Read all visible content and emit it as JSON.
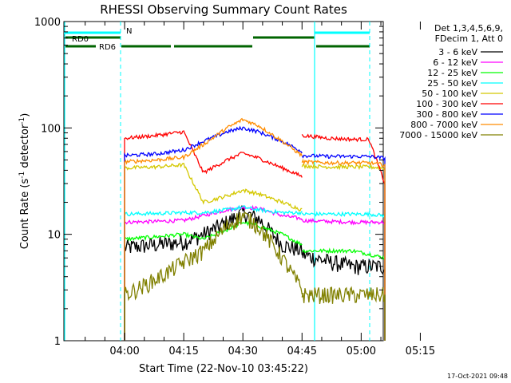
{
  "chart_data": {
    "type": "line",
    "title": "RHESSI Observing Summary Count Rates",
    "xlabel": "Start Time (22-Nov-10 03:45:22)",
    "ylabel": "Count Rate (s",
    "ylabel_sup": "-1",
    "ylabel_mid": " detector",
    "ylabel_sup2": "-1",
    "ylabel_end": ")",
    "yscale": "log",
    "ylim": [
      1,
      1000
    ],
    "xlim_minutes": [
      -15.4,
      65.6
    ],
    "y_ticks": [
      {
        "value": 1,
        "label": "1"
      },
      {
        "value": 10,
        "label": "10"
      },
      {
        "value": 100,
        "label": "100"
      },
      {
        "value": 1000,
        "label": "1000"
      }
    ],
    "x_ticks": [
      {
        "minutes": 0,
        "label": "04:00"
      },
      {
        "minutes": 15,
        "label": "04:15"
      },
      {
        "minutes": 30,
        "label": "04:30"
      },
      {
        "minutes": 45,
        "label": "04:45"
      },
      {
        "minutes": 60,
        "label": "05:00"
      },
      {
        "minutes": 75,
        "label": "05:15"
      }
    ],
    "legend": {
      "header": [
        "Det 1,3,4,5,6,9,",
        "FDecim 1, Att 0"
      ],
      "placement": "right"
    },
    "flags": {
      "N_label": "N",
      "RD0_label": "RD0",
      "RD6_label": "RD6"
    },
    "series": [
      {
        "name": "3 - 6 keV",
        "color": "#000000",
        "segments": [
          {
            "x": [
              0,
              8,
              15,
              20,
              26,
              30,
              34,
              40,
              45
            ],
            "y": [
              7.5,
              8,
              8.5,
              10,
              13,
              16,
              14,
              8,
              7
            ]
          },
          {
            "x": [
              45,
              52,
              58,
              62,
              66
            ],
            "y": [
              6.5,
              5.5,
              5,
              5,
              5
            ]
          }
        ]
      },
      {
        "name": "6 - 12 keV",
        "color": "#ff00ff",
        "segments": [
          {
            "x": [
              0,
              8,
              15,
              20,
              26,
              30,
              34,
              40,
              45
            ],
            "y": [
              13,
              13.2,
              13.5,
              15,
              17,
              18,
              17.5,
              15,
              14
            ]
          },
          {
            "x": [
              45,
              52,
              58,
              62,
              66
            ],
            "y": [
              13.5,
              13.2,
              13,
              13,
              13
            ]
          }
        ]
      },
      {
        "name": "12 - 25 keV",
        "color": "#00ff00",
        "segments": [
          {
            "x": [
              0,
              8,
              15,
              20,
              26,
              30,
              34,
              40,
              45
            ],
            "y": [
              9,
              9.5,
              10,
              9,
              11,
              13,
              12,
              10,
              8
            ]
          },
          {
            "x": [
              45,
              52,
              58,
              62,
              66
            ],
            "y": [
              7,
              7,
              7,
              6.5,
              6
            ]
          }
        ]
      },
      {
        "name": "25 - 50 keV",
        "color": "#00ffff",
        "segments": [
          {
            "x": [
              0,
              8,
              15,
              20,
              26,
              30,
              34,
              40,
              45
            ],
            "y": [
              15.5,
              15.7,
              16,
              16,
              17,
              18,
              17,
              16,
              16
            ]
          },
          {
            "x": [
              45,
              52,
              58,
              62,
              66
            ],
            "y": [
              15.5,
              15.5,
              15.5,
              15.5,
              15
            ]
          }
        ]
      },
      {
        "name": "50 - 100 keV",
        "color": "#d4c800",
        "segments": [
          {
            "x": [
              0,
              8,
              15,
              20,
              26,
              30,
              34,
              40,
              45
            ],
            "y": [
              42,
              43,
              45,
              20,
              23,
              26,
              24,
              20,
              17
            ]
          },
          {
            "x": [
              45,
              52,
              58,
              62,
              66
            ],
            "y": [
              44,
              43,
              43,
              43,
              42
            ]
          }
        ]
      },
      {
        "name": "100 - 300 keV",
        "color": "#ff0000",
        "segments": [
          {
            "x": [
              0,
              8,
              15,
              20,
              26,
              30,
              34,
              40,
              45
            ],
            "y": [
              80,
              85,
              92,
              38,
              50,
              58,
              52,
              42,
              35
            ]
          },
          {
            "x": [
              45,
              52,
              58,
              62,
              66
            ],
            "y": [
              85,
              80,
              78,
              78,
              30
            ]
          }
        ]
      },
      {
        "name": "300 - 800 keV",
        "color": "#0000ff",
        "segments": [
          {
            "x": [
              0,
              8,
              15,
              20,
              26,
              30,
              34,
              40,
              45
            ],
            "y": [
              55,
              57,
              62,
              75,
              92,
              100,
              92,
              75,
              60
            ]
          },
          {
            "x": [
              45,
              52,
              58,
              62,
              66
            ],
            "y": [
              55,
              54,
              54,
              54,
              52
            ]
          }
        ]
      },
      {
        "name": "800 - 7000 keV",
        "color": "#ff8c00",
        "segments": [
          {
            "x": [
              0,
              8,
              15,
              20,
              26,
              30,
              34,
              40,
              45
            ],
            "y": [
              48,
              50,
              53,
              70,
              100,
              120,
              105,
              75,
              55
            ]
          },
          {
            "x": [
              45,
              52,
              58,
              62,
              66
            ],
            "y": [
              48,
              47,
              47,
              47,
              45
            ]
          }
        ]
      },
      {
        "name": "7000 - 15000 keV",
        "color": "#808000",
        "segments": [
          {
            "x": [
              0,
              5,
              10,
              15,
              20,
              26,
              30,
              34,
              40,
              45
            ],
            "y": [
              2.7,
              3.3,
              4.2,
              5.5,
              7,
              12,
              15,
              12,
              6,
              3
            ]
          },
          {
            "x": [
              45,
              52,
              58,
              62,
              66
            ],
            "y": [
              2.7,
              2.7,
              2.7,
              2.7,
              2.7
            ]
          }
        ]
      }
    ]
  },
  "footer": {
    "timestamp": "17-Oct-2021 09:48"
  }
}
